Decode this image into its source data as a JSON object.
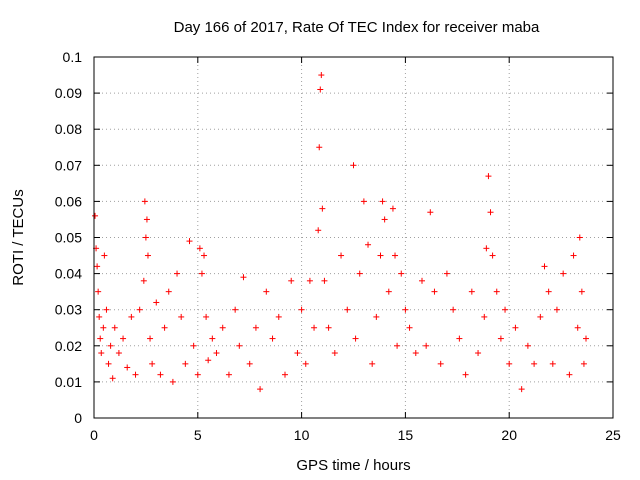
{
  "chart_data": {
    "type": "scatter",
    "title": "Day 166 of 2017, Rate Of TEC Index for receiver maba",
    "xlabel": "GPS time / hours",
    "ylabel": "ROTI / TECUs",
    "xlim": [
      0,
      25
    ],
    "ylim": [
      0,
      0.1
    ],
    "xticks": [
      0,
      5,
      10,
      15,
      20,
      25
    ],
    "xtick_labels": [
      "0",
      "5",
      "10",
      "15",
      "20",
      "25"
    ],
    "yticks": [
      0,
      0.01,
      0.02,
      0.03,
      0.04,
      0.05,
      0.06,
      0.07,
      0.08,
      0.09,
      0.1
    ],
    "ytick_labels": [
      "0",
      "0.01",
      "0.02",
      "0.03",
      "0.04",
      "0.05",
      "0.06",
      "0.07",
      "0.08",
      "0.09",
      "0.1"
    ],
    "grid": true,
    "marker": "+",
    "marker_color": "#ff0000",
    "series": [
      {
        "name": "ROTI",
        "x": [
          0.05,
          0.1,
          0.15,
          0.2,
          0.25,
          0.3,
          0.35,
          0.45,
          0.5,
          0.6,
          0.7,
          0.8,
          0.9,
          1.0,
          1.2,
          1.4,
          1.6,
          1.8,
          2.0,
          2.2,
          2.4,
          2.45,
          2.5,
          2.55,
          2.6,
          2.7,
          2.8,
          3.0,
          3.2,
          3.4,
          3.6,
          3.8,
          4.0,
          4.2,
          4.4,
          4.6,
          4.8,
          5.0,
          5.1,
          5.2,
          5.3,
          5.4,
          5.5,
          5.7,
          5.9,
          6.2,
          6.5,
          6.8,
          7.0,
          7.2,
          7.5,
          7.8,
          8.0,
          8.3,
          8.6,
          8.9,
          9.2,
          9.5,
          9.8,
          10.0,
          10.2,
          10.4,
          10.6,
          10.8,
          10.85,
          10.9,
          10.95,
          11.0,
          11.1,
          11.3,
          11.6,
          11.9,
          12.2,
          12.5,
          12.6,
          12.8,
          13.0,
          13.2,
          13.4,
          13.6,
          13.8,
          13.9,
          14.0,
          14.2,
          14.4,
          14.5,
          14.6,
          14.8,
          15.0,
          15.2,
          15.5,
          15.8,
          16.0,
          16.2,
          16.4,
          16.7,
          17.0,
          17.3,
          17.6,
          17.9,
          18.2,
          18.5,
          18.8,
          18.9,
          19.0,
          19.1,
          19.2,
          19.4,
          19.6,
          19.8,
          20.0,
          20.3,
          20.6,
          20.9,
          21.2,
          21.5,
          21.7,
          21.9,
          22.1,
          22.3,
          22.6,
          22.9,
          23.1,
          23.3,
          23.4,
          23.5,
          23.6,
          23.7
        ],
        "y": [
          0.056,
          0.047,
          0.042,
          0.035,
          0.028,
          0.022,
          0.018,
          0.025,
          0.045,
          0.03,
          0.015,
          0.02,
          0.011,
          0.025,
          0.018,
          0.022,
          0.014,
          0.028,
          0.012,
          0.03,
          0.038,
          0.06,
          0.05,
          0.055,
          0.045,
          0.022,
          0.015,
          0.032,
          0.012,
          0.025,
          0.035,
          0.01,
          0.04,
          0.028,
          0.015,
          0.049,
          0.02,
          0.012,
          0.047,
          0.04,
          0.045,
          0.028,
          0.016,
          0.022,
          0.018,
          0.025,
          0.012,
          0.03,
          0.02,
          0.039,
          0.015,
          0.025,
          0.008,
          0.035,
          0.022,
          0.028,
          0.012,
          0.038,
          0.018,
          0.03,
          0.015,
          0.038,
          0.025,
          0.052,
          0.075,
          0.091,
          0.095,
          0.058,
          0.038,
          0.025,
          0.018,
          0.045,
          0.03,
          0.07,
          0.022,
          0.04,
          0.06,
          0.048,
          0.015,
          0.028,
          0.045,
          0.06,
          0.055,
          0.035,
          0.058,
          0.045,
          0.02,
          0.04,
          0.03,
          0.025,
          0.018,
          0.038,
          0.02,
          0.057,
          0.035,
          0.015,
          0.04,
          0.03,
          0.022,
          0.012,
          0.035,
          0.018,
          0.028,
          0.047,
          0.067,
          0.057,
          0.045,
          0.035,
          0.022,
          0.03,
          0.015,
          0.025,
          0.008,
          0.02,
          0.015,
          0.028,
          0.042,
          0.035,
          0.015,
          0.03,
          0.04,
          0.012,
          0.045,
          0.025,
          0.05,
          0.035,
          0.015,
          0.022
        ]
      }
    ]
  }
}
